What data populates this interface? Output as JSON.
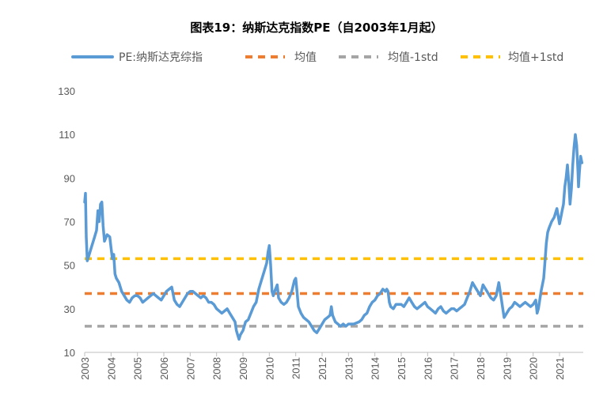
{
  "chart_data": {
    "type": "line",
    "title": "图表19：纳斯达克指数PE（自2003年1月起）",
    "xlabel": "",
    "ylabel": "",
    "ylim": [
      10,
      130
    ],
    "yticks": [
      10,
      30,
      50,
      70,
      90,
      110,
      130
    ],
    "xlim": [
      2003,
      2021.9
    ],
    "x_tick_labels": [
      "2003",
      "2004",
      "2005",
      "2006",
      "2007",
      "2008",
      "2009",
      "2010",
      "2011",
      "2012",
      "2013",
      "2014",
      "2015",
      "2016",
      "2017",
      "2018",
      "2019",
      "2020",
      "2021"
    ],
    "series": [
      {
        "name": "PE:纳斯达克综指",
        "color": "#5B9BD5",
        "style": "solid",
        "points": [
          [
            2003.0,
            79
          ],
          [
            2003.03,
            83
          ],
          [
            2003.06,
            63
          ],
          [
            2003.1,
            52
          ],
          [
            2003.15,
            54
          ],
          [
            2003.25,
            58
          ],
          [
            2003.35,
            62
          ],
          [
            2003.45,
            66
          ],
          [
            2003.5,
            75
          ],
          [
            2003.55,
            70
          ],
          [
            2003.6,
            78
          ],
          [
            2003.65,
            79
          ],
          [
            2003.7,
            68
          ],
          [
            2003.75,
            61
          ],
          [
            2003.85,
            64
          ],
          [
            2003.95,
            63
          ],
          [
            2004.0,
            58
          ],
          [
            2004.05,
            53
          ],
          [
            2004.1,
            55
          ],
          [
            2004.15,
            46
          ],
          [
            2004.2,
            44
          ],
          [
            2004.3,
            42
          ],
          [
            2004.4,
            38
          ],
          [
            2004.5,
            36
          ],
          [
            2004.6,
            34
          ],
          [
            2004.7,
            33
          ],
          [
            2004.8,
            35
          ],
          [
            2004.9,
            36
          ],
          [
            2005.0,
            36
          ],
          [
            2005.1,
            35
          ],
          [
            2005.2,
            33
          ],
          [
            2005.3,
            34
          ],
          [
            2005.4,
            35
          ],
          [
            2005.5,
            36
          ],
          [
            2005.6,
            37
          ],
          [
            2005.7,
            36
          ],
          [
            2005.8,
            35
          ],
          [
            2005.9,
            34
          ],
          [
            2006.0,
            36
          ],
          [
            2006.1,
            38
          ],
          [
            2006.2,
            39
          ],
          [
            2006.3,
            40
          ],
          [
            2006.4,
            34
          ],
          [
            2006.5,
            32
          ],
          [
            2006.6,
            31
          ],
          [
            2006.7,
            33
          ],
          [
            2006.8,
            35
          ],
          [
            2006.9,
            37
          ],
          [
            2007.0,
            38
          ],
          [
            2007.1,
            38
          ],
          [
            2007.2,
            37
          ],
          [
            2007.3,
            36
          ],
          [
            2007.4,
            35
          ],
          [
            2007.5,
            36
          ],
          [
            2007.6,
            35
          ],
          [
            2007.7,
            33
          ],
          [
            2007.8,
            33
          ],
          [
            2007.9,
            32
          ],
          [
            2008.0,
            30
          ],
          [
            2008.1,
            29
          ],
          [
            2008.2,
            28
          ],
          [
            2008.3,
            29
          ],
          [
            2008.4,
            30
          ],
          [
            2008.5,
            28
          ],
          [
            2008.6,
            26
          ],
          [
            2008.7,
            24
          ],
          [
            2008.75,
            20
          ],
          [
            2008.8,
            18
          ],
          [
            2008.85,
            16
          ],
          [
            2008.9,
            18
          ],
          [
            2009.0,
            20
          ],
          [
            2009.1,
            24
          ],
          [
            2009.2,
            25
          ],
          [
            2009.3,
            28
          ],
          [
            2009.4,
            31
          ],
          [
            2009.5,
            33
          ],
          [
            2009.6,
            39
          ],
          [
            2009.7,
            43
          ],
          [
            2009.8,
            47
          ],
          [
            2009.9,
            51
          ],
          [
            2009.95,
            56
          ],
          [
            2010.0,
            59
          ],
          [
            2010.05,
            50
          ],
          [
            2010.1,
            38
          ],
          [
            2010.15,
            36
          ],
          [
            2010.2,
            38
          ],
          [
            2010.3,
            41
          ],
          [
            2010.35,
            35
          ],
          [
            2010.45,
            33
          ],
          [
            2010.55,
            32
          ],
          [
            2010.65,
            33
          ],
          [
            2010.75,
            35
          ],
          [
            2010.85,
            38
          ],
          [
            2010.95,
            43
          ],
          [
            2011.0,
            44
          ],
          [
            2011.05,
            38
          ],
          [
            2011.1,
            31
          ],
          [
            2011.2,
            28
          ],
          [
            2011.3,
            26
          ],
          [
            2011.4,
            25
          ],
          [
            2011.5,
            24
          ],
          [
            2011.6,
            22
          ],
          [
            2011.7,
            20
          ],
          [
            2011.8,
            19
          ],
          [
            2011.9,
            21
          ],
          [
            2012.0,
            23
          ],
          [
            2012.1,
            25
          ],
          [
            2012.2,
            26
          ],
          [
            2012.3,
            27
          ],
          [
            2012.35,
            31
          ],
          [
            2012.4,
            27
          ],
          [
            2012.5,
            24
          ],
          [
            2012.6,
            23
          ],
          [
            2012.7,
            22
          ],
          [
            2012.8,
            23
          ],
          [
            2012.9,
            22
          ],
          [
            2013.0,
            23
          ],
          [
            2013.2,
            23
          ],
          [
            2013.4,
            24
          ],
          [
            2013.5,
            25
          ],
          [
            2013.6,
            27
          ],
          [
            2013.7,
            28
          ],
          [
            2013.8,
            31
          ],
          [
            2013.9,
            33
          ],
          [
            2014.0,
            34
          ],
          [
            2014.1,
            36
          ],
          [
            2014.2,
            37
          ],
          [
            2014.3,
            39
          ],
          [
            2014.4,
            38
          ],
          [
            2014.45,
            39
          ],
          [
            2014.5,
            38
          ],
          [
            2014.55,
            33
          ],
          [
            2014.6,
            31
          ],
          [
            2014.7,
            30
          ],
          [
            2014.8,
            32
          ],
          [
            2014.9,
            32
          ],
          [
            2015.0,
            32
          ],
          [
            2015.1,
            31
          ],
          [
            2015.2,
            33
          ],
          [
            2015.3,
            35
          ],
          [
            2015.4,
            33
          ],
          [
            2015.5,
            31
          ],
          [
            2015.6,
            30
          ],
          [
            2015.7,
            31
          ],
          [
            2015.8,
            32
          ],
          [
            2015.9,
            33
          ],
          [
            2016.0,
            31
          ],
          [
            2016.1,
            30
          ],
          [
            2016.2,
            29
          ],
          [
            2016.3,
            28
          ],
          [
            2016.4,
            30
          ],
          [
            2016.5,
            31
          ],
          [
            2016.6,
            29
          ],
          [
            2016.7,
            28
          ],
          [
            2016.8,
            29
          ],
          [
            2016.9,
            30
          ],
          [
            2017.0,
            30
          ],
          [
            2017.1,
            29
          ],
          [
            2017.2,
            30
          ],
          [
            2017.3,
            31
          ],
          [
            2017.4,
            32
          ],
          [
            2017.5,
            35
          ],
          [
            2017.6,
            38
          ],
          [
            2017.7,
            42
          ],
          [
            2017.8,
            40
          ],
          [
            2017.9,
            38
          ],
          [
            2018.0,
            36
          ],
          [
            2018.1,
            41
          ],
          [
            2018.2,
            39
          ],
          [
            2018.3,
            37
          ],
          [
            2018.4,
            35
          ],
          [
            2018.5,
            34
          ],
          [
            2018.6,
            36
          ],
          [
            2018.7,
            42
          ],
          [
            2018.75,
            38
          ],
          [
            2018.8,
            34
          ],
          [
            2018.85,
            30
          ],
          [
            2018.9,
            26
          ],
          [
            2019.0,
            28
          ],
          [
            2019.1,
            30
          ],
          [
            2019.2,
            31
          ],
          [
            2019.3,
            33
          ],
          [
            2019.4,
            32
          ],
          [
            2019.5,
            31
          ],
          [
            2019.6,
            32
          ],
          [
            2019.7,
            33
          ],
          [
            2019.8,
            32
          ],
          [
            2019.9,
            31
          ],
          [
            2020.0,
            32
          ],
          [
            2020.1,
            34
          ],
          [
            2020.15,
            28
          ],
          [
            2020.2,
            30
          ],
          [
            2020.3,
            38
          ],
          [
            2020.4,
            44
          ],
          [
            2020.45,
            52
          ],
          [
            2020.5,
            60
          ],
          [
            2020.55,
            65
          ],
          [
            2020.6,
            67
          ],
          [
            2020.7,
            70
          ],
          [
            2020.8,
            72
          ],
          [
            2020.9,
            76
          ],
          [
            2021.0,
            69
          ],
          [
            2021.05,
            72
          ],
          [
            2021.1,
            75
          ],
          [
            2021.15,
            78
          ],
          [
            2021.2,
            86
          ],
          [
            2021.25,
            90
          ],
          [
            2021.3,
            96
          ],
          [
            2021.35,
            88
          ],
          [
            2021.4,
            78
          ],
          [
            2021.45,
            85
          ],
          [
            2021.5,
            96
          ],
          [
            2021.55,
            104
          ],
          [
            2021.6,
            110
          ],
          [
            2021.65,
            105
          ],
          [
            2021.7,
            93
          ],
          [
            2021.72,
            86
          ],
          [
            2021.75,
            92
          ],
          [
            2021.8,
            100
          ],
          [
            2021.85,
            97
          ]
        ]
      },
      {
        "name": "均值",
        "color": "#ED7D31",
        "style": "dashed",
        "value": 37
      },
      {
        "name": "均值-1std",
        "color": "#A5A5A5",
        "style": "dashed",
        "value": 22
      },
      {
        "name": "均值+1std",
        "color": "#FFC000",
        "style": "dashed",
        "value": 53
      }
    ]
  }
}
